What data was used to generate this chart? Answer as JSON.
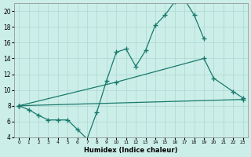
{
  "xlabel": "Humidex (Indice chaleur)",
  "bg_color": "#cceee8",
  "line_color": "#1a7a6e",
  "grid_color": "#aad8d0",
  "xlim": [
    -0.5,
    23.5
  ],
  "ylim": [
    4,
    21
  ],
  "series1_x": [
    0,
    1,
    2,
    3,
    4,
    5,
    6,
    7,
    8,
    9,
    10,
    11,
    12,
    13,
    14,
    15,
    16,
    17,
    18,
    19
  ],
  "series1_y": [
    8.0,
    7.5,
    6.8,
    6.2,
    6.2,
    6.2,
    5.0,
    3.8,
    7.2,
    11.2,
    14.8,
    15.2,
    13.0,
    15.0,
    18.2,
    19.5,
    21.2,
    21.5,
    19.5,
    16.5
  ],
  "series2_x": [
    0,
    10,
    19,
    20,
    22,
    23
  ],
  "series2_y": [
    8.0,
    11.0,
    14.0,
    11.5,
    9.8,
    9.0
  ],
  "series3_x": [
    0,
    23
  ],
  "series3_y": [
    8.0,
    8.8
  ]
}
